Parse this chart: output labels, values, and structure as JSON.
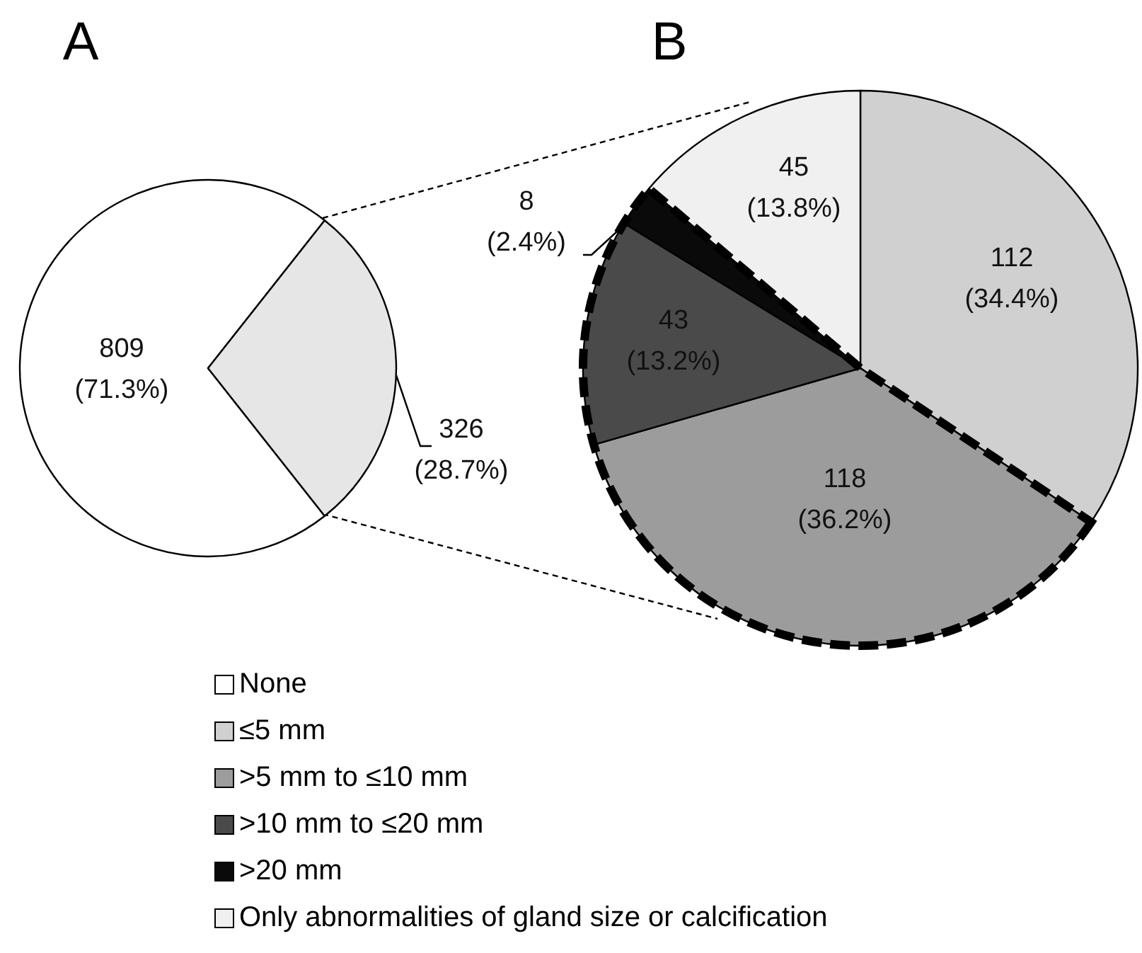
{
  "chart_data": [
    {
      "type": "pie",
      "title": "A",
      "categories": [
        "None",
        null
      ],
      "values": [
        809,
        326
      ],
      "colors": [
        "#ffffff",
        "#e6e6e6"
      ],
      "value_labels": [
        "809\n(71.3%)",
        "326\n(28.7%)"
      ],
      "legend": "bottom"
    },
    {
      "type": "pie",
      "title": "B",
      "categories": [
        "≤5 mm",
        ">5 mm to ≤10 mm",
        ">10 mm to ≤20 mm",
        ">20 mm",
        "Only abnormalities of gland size or calcification"
      ],
      "values": [
        112,
        118,
        43,
        8,
        45
      ],
      "colors": [
        "#d0d0d0",
        "#9c9c9c",
        "#4a4a4a",
        "#0a0a0a",
        "#f0f0f0"
      ],
      "value_labels": [
        "112\n(34.4%)",
        "118\n(36.2%)",
        "43\n(13.2%)",
        "8\n(2.4%)",
        "45\n(13.8%)"
      ],
      "legend": "bottom"
    }
  ]
}
